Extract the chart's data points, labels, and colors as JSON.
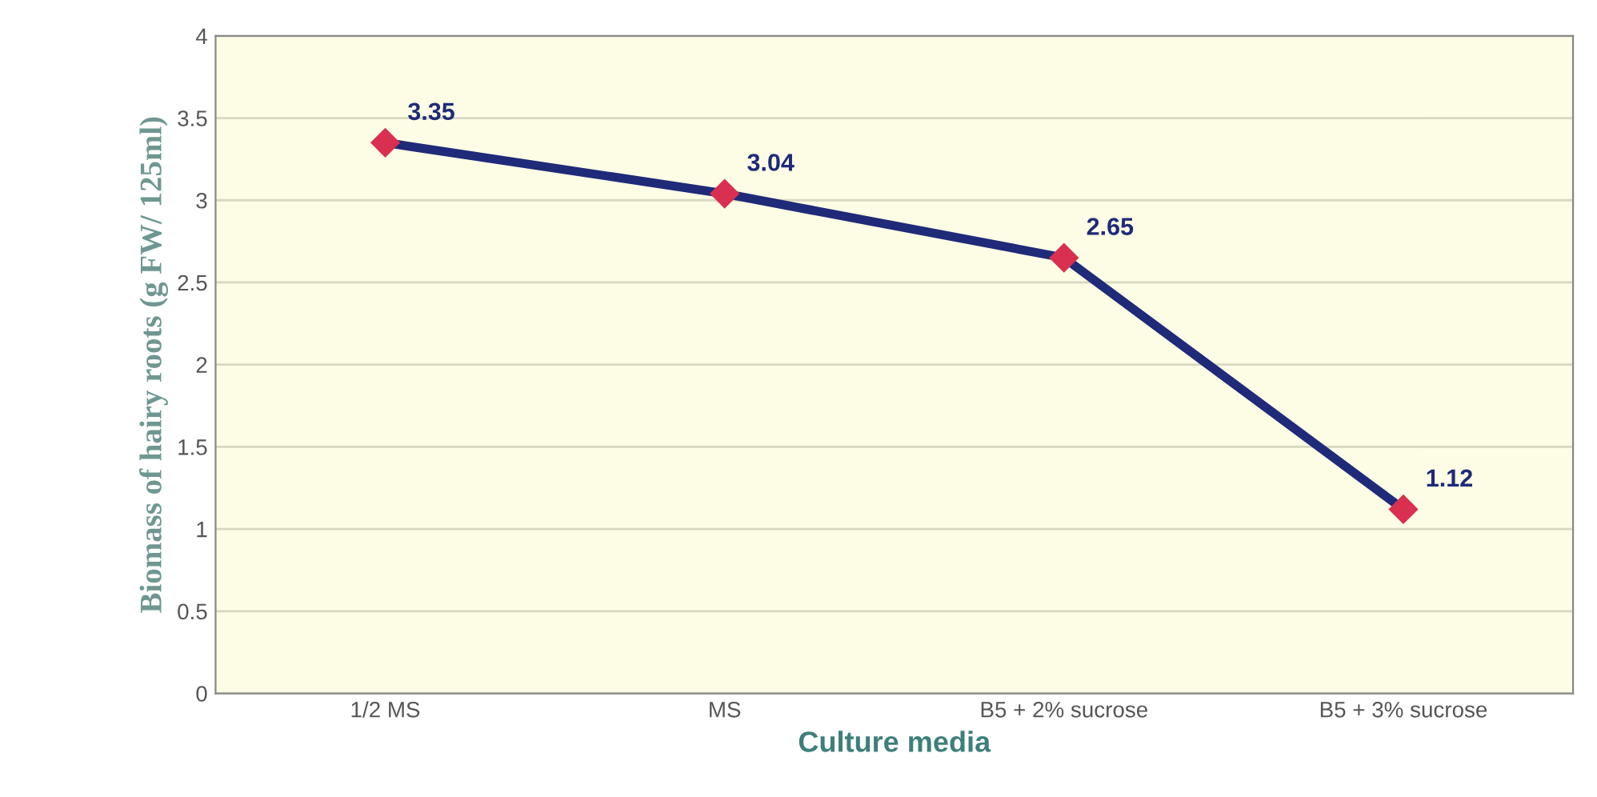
{
  "chart_data": {
    "type": "line",
    "xlabel": "Culture media",
    "ylabel": "Biomass of hairy roots (g FW/ 125ml)",
    "categories": [
      "1/2 MS",
      "MS",
      "B5 + 2% sucrose",
      "B5 + 3% sucrose"
    ],
    "series": [
      {
        "color": "#1f2a78",
        "colors": [
          "#d9304f",
          "#d9304f",
          "#d9304f",
          "#d9304f"
        ],
        "values": [
          3.35,
          3.04,
          2.65,
          1.12
        ]
      }
    ],
    "ylim": [
      0,
      4
    ],
    "yticks": [
      0,
      0.5,
      1,
      1.5,
      2,
      2.5,
      3,
      3.5,
      4
    ],
    "grid": "y",
    "marker": "diamond",
    "line_style": "solid",
    "data_labels": true
  }
}
